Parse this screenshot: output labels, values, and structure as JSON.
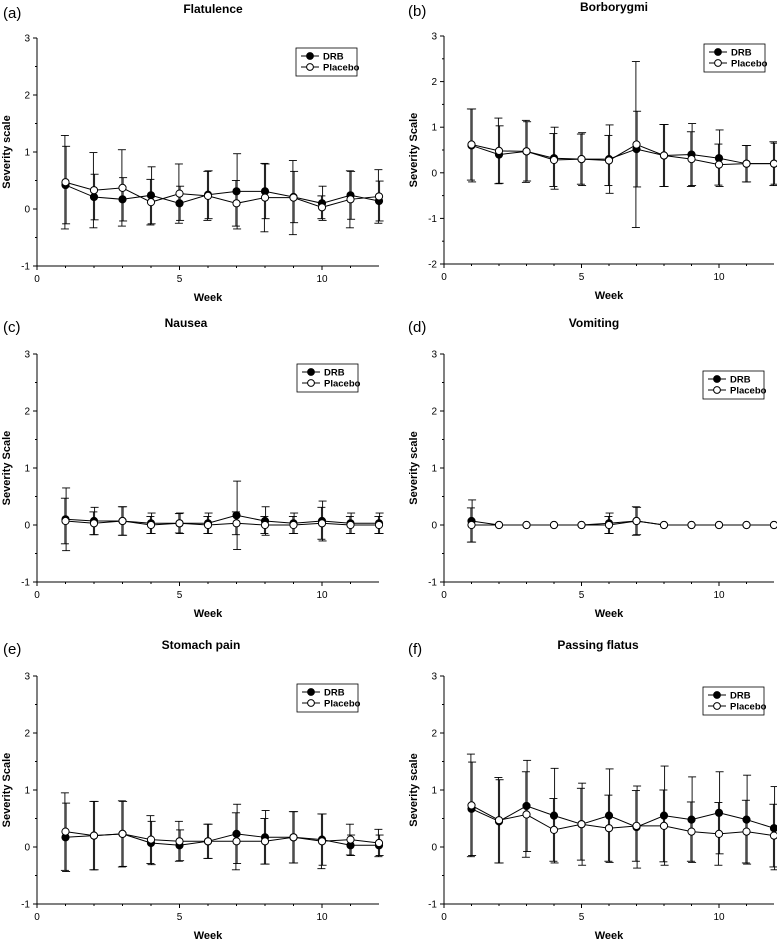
{
  "chart_data": [
    {
      "type": "line",
      "label": "(a)",
      "title": "Flatulence",
      "xlabel": "Week",
      "ylabel": "Severity scale",
      "xlim": [
        0,
        12
      ],
      "ylim": [
        -1,
        3
      ],
      "xticks": [
        "0",
        "5",
        "10"
      ],
      "yticks": [
        "-1",
        "0",
        "1",
        "2",
        "3"
      ],
      "legend": [
        "DRB",
        "Placebo"
      ],
      "legend_position": "top-right",
      "x": [
        1,
        2,
        3,
        4,
        5,
        6,
        7,
        8,
        9,
        10,
        11,
        12
      ],
      "series": [
        {
          "name": "DRB",
          "marker": "filled",
          "values": [
            0.42,
            0.21,
            0.17,
            0.24,
            0.1,
            0.25,
            0.31,
            0.31,
            0.21,
            0.1,
            0.24,
            0.14
          ],
          "err": [
            0.68,
            0.4,
            0.38,
            0.5,
            0.3,
            0.42,
            0.66,
            0.48,
            0.45,
            0.3,
            0.42,
            0.35
          ]
        },
        {
          "name": "Placebo",
          "marker": "open",
          "values": [
            0.47,
            0.33,
            0.37,
            0.12,
            0.27,
            0.23,
            0.1,
            0.2,
            0.2,
            0.03,
            0.17,
            0.22
          ],
          "err": [
            0.82,
            0.66,
            0.67,
            0.4,
            0.52,
            0.43,
            0.4,
            0.6,
            0.65,
            0.2,
            0.5,
            0.47
          ]
        }
      ]
    },
    {
      "type": "line",
      "label": "(b)",
      "title": "Borborygmi",
      "xlabel": "Week",
      "ylabel": "Severity Scale",
      "xlim": [
        0,
        12
      ],
      "ylim": [
        -2,
        3
      ],
      "xticks": [
        "0",
        "5",
        "10"
      ],
      "yticks": [
        "-2",
        "-1",
        "0",
        "1",
        "2",
        "3"
      ],
      "legend": [
        "DRB",
        "Placebo"
      ],
      "legend_position": "top-right",
      "x": [
        1,
        2,
        3,
        4,
        5,
        6,
        7,
        8,
        9,
        10,
        11,
        12
      ],
      "series": [
        {
          "name": "DRB",
          "marker": "filled",
          "values": [
            0.6,
            0.4,
            0.47,
            0.32,
            0.3,
            0.3,
            0.52,
            0.38,
            0.4,
            0.32,
            0.2,
            0.2
          ],
          "err": [
            0.8,
            0.63,
            0.65,
            0.68,
            0.58,
            0.75,
            0.83,
            0.68,
            0.68,
            0.62,
            0.4,
            0.45
          ]
        },
        {
          "name": "Placebo",
          "marker": "open",
          "values": [
            0.62,
            0.48,
            0.47,
            0.28,
            0.3,
            0.27,
            0.62,
            0.38,
            0.3,
            0.18,
            0.2,
            0.2
          ],
          "err": [
            0.78,
            0.72,
            0.68,
            0.58,
            0.55,
            0.55,
            1.82,
            0.68,
            0.6,
            0.45,
            0.4,
            0.48
          ]
        }
      ]
    },
    {
      "type": "line",
      "label": "(c)",
      "title": "Nausea",
      "xlabel": "Week",
      "ylabel": "Severity Scale",
      "xlim": [
        0,
        12
      ],
      "ylim": [
        -1,
        3
      ],
      "xticks": [
        "0",
        "5",
        "10"
      ],
      "yticks": [
        "-1",
        "0",
        "1",
        "2",
        "3"
      ],
      "legend": [
        "DRB",
        "Placebo"
      ],
      "legend_position": "top-right",
      "x": [
        1,
        2,
        3,
        4,
        5,
        6,
        7,
        8,
        9,
        10,
        11,
        12
      ],
      "series": [
        {
          "name": "DRB",
          "marker": "filled",
          "values": [
            0.1,
            0.07,
            0.07,
            0.03,
            0.03,
            0.03,
            0.17,
            0.07,
            0.03,
            0.07,
            0.03,
            0.03
          ],
          "err": [
            0.55,
            0.24,
            0.25,
            0.18,
            0.18,
            0.18,
            0.6,
            0.25,
            0.18,
            0.35,
            0.18,
            0.18
          ]
        },
        {
          "name": "Placebo",
          "marker": "open",
          "values": [
            0.07,
            0.03,
            0.07,
            0.0,
            0.03,
            0.0,
            0.03,
            0.0,
            0.0,
            0.03,
            0.0,
            0.0
          ],
          "err": [
            0.4,
            0.2,
            0.25,
            0.15,
            0.17,
            0.15,
            0.2,
            0.15,
            0.15,
            0.28,
            0.15,
            0.15
          ]
        }
      ]
    },
    {
      "type": "line",
      "label": "(d)",
      "title": "Vomiting",
      "xlabel": "Week",
      "ylabel": "Severity scale",
      "xlim": [
        0,
        12
      ],
      "ylim": [
        -1,
        3
      ],
      "xticks": [
        "0",
        "5",
        "10"
      ],
      "yticks": [
        "-1",
        "0",
        "1",
        "2",
        "3"
      ],
      "legend": [
        "DRB",
        "Placebo"
      ],
      "legend_position": "top-right",
      "x": [
        1,
        2,
        3,
        4,
        5,
        6,
        7,
        8,
        9,
        10,
        11,
        12
      ],
      "series": [
        {
          "name": "DRB",
          "marker": "filled",
          "values": [
            0.07,
            0,
            0,
            0,
            0,
            0.03,
            0.07,
            0,
            0,
            0,
            0,
            0
          ],
          "err": [
            0.37,
            0,
            0,
            0,
            0,
            0.18,
            0.24,
            0,
            0,
            0,
            0,
            0
          ]
        },
        {
          "name": "Placebo",
          "marker": "open",
          "values": [
            0,
            0,
            0,
            0,
            0,
            0,
            0.07,
            0,
            0,
            0,
            0,
            0
          ],
          "err": [
            0.3,
            0,
            0,
            0,
            0,
            0.15,
            0.25,
            0,
            0,
            0,
            0,
            0
          ]
        }
      ]
    },
    {
      "type": "line",
      "label": "(e)",
      "title": "Stomach pain",
      "xlabel": "Week",
      "ylabel": "Severity Scale",
      "xlim": [
        0,
        12
      ],
      "ylim": [
        -1,
        3
      ],
      "xticks": [
        "0",
        "5",
        "10"
      ],
      "yticks": [
        "-1",
        "0",
        "1",
        "2",
        "3"
      ],
      "legend": [
        "DRB",
        "Placebo"
      ],
      "legend_position": "top-right",
      "x": [
        1,
        2,
        3,
        4,
        5,
        6,
        7,
        8,
        9,
        10,
        11,
        12
      ],
      "series": [
        {
          "name": "DRB",
          "marker": "filled",
          "values": [
            0.17,
            0.2,
            0.23,
            0.07,
            0.03,
            0.1,
            0.23,
            0.17,
            0.17,
            0.13,
            0.03,
            0.03
          ],
          "err": [
            0.6,
            0.6,
            0.57,
            0.38,
            0.27,
            0.3,
            0.52,
            0.47,
            0.45,
            0.45,
            0.18,
            0.18
          ]
        },
        {
          "name": "Placebo",
          "marker": "open",
          "values": [
            0.27,
            0.2,
            0.23,
            0.13,
            0.1,
            0.1,
            0.1,
            0.1,
            0.17,
            0.1,
            0.13,
            0.07
          ],
          "err": [
            0.68,
            0.6,
            0.58,
            0.42,
            0.35,
            0.3,
            0.5,
            0.4,
            0.45,
            0.48,
            0.27,
            0.24
          ]
        }
      ]
    },
    {
      "type": "line",
      "label": "(f)",
      "title": "Passing flatus",
      "xlabel": "Week",
      "ylabel": "Severity scale",
      "xlim": [
        0,
        12
      ],
      "ylim": [
        -1,
        3
      ],
      "xticks": [
        "0",
        "5",
        "10"
      ],
      "yticks": [
        "-1",
        "0",
        "1",
        "2",
        "3"
      ],
      "legend": [
        "DRB",
        "Placebo"
      ],
      "legend_position": "top-right",
      "x": [
        1,
        2,
        3,
        4,
        5,
        6,
        7,
        8,
        9,
        10,
        11,
        12
      ],
      "series": [
        {
          "name": "DRB",
          "marker": "filled",
          "values": [
            0.67,
            0.45,
            0.72,
            0.55,
            0.4,
            0.55,
            0.35,
            0.55,
            0.48,
            0.6,
            0.48,
            0.33
          ],
          "err": [
            0.82,
            0.73,
            0.8,
            0.83,
            0.72,
            0.82,
            0.72,
            0.87,
            0.75,
            0.72,
            0.78,
            0.73
          ]
        },
        {
          "name": "Placebo",
          "marker": "open",
          "values": [
            0.73,
            0.47,
            0.57,
            0.3,
            0.4,
            0.33,
            0.37,
            0.37,
            0.27,
            0.23,
            0.27,
            0.2
          ],
          "err": [
            0.9,
            0.75,
            0.75,
            0.55,
            0.63,
            0.58,
            0.62,
            0.63,
            0.52,
            0.55,
            0.55,
            0.55
          ]
        }
      ]
    }
  ]
}
